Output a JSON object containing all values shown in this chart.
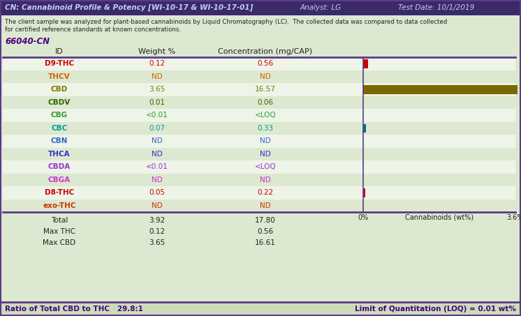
{
  "title_left": "CN: Cannabinoid Profile & Potency [WI-10-17 & WI-10-17-01]",
  "title_analyst": "Analyst: LG",
  "title_date": "Test Date: 10/1/2019",
  "description_line1": "The client sample was analyzed for plant-based cannabinoids by Liquid Chromatography (LC).  The collected data was compared to data collected",
  "description_line2": "for certified reference standards at known concentrations.",
  "sample_id": "66040-CN",
  "col_headers": [
    "ID",
    "Weight %",
    "Concentration (mg/CAP)"
  ],
  "rows": [
    {
      "id": "D9-THC",
      "color": "#cc0000",
      "weight": "0.12",
      "conc": "0.56",
      "bar_val": 0.12,
      "bar_color": "#cc0000"
    },
    {
      "id": "THCV",
      "color": "#cc6600",
      "weight": "ND",
      "conc": "ND",
      "bar_val": 0,
      "bar_color": null
    },
    {
      "id": "CBD",
      "color": "#7a7a00",
      "weight": "3.65",
      "conc": "16.57",
      "bar_val": 3.65,
      "bar_color": "#7a6800"
    },
    {
      "id": "CBDV",
      "color": "#336600",
      "weight": "0.01",
      "conc": "0.06",
      "bar_val": 0.01,
      "bar_color": null
    },
    {
      "id": "CBG",
      "color": "#339933",
      "weight": "<0.01",
      "conc": "<LOQ",
      "bar_val": 0,
      "bar_color": null
    },
    {
      "id": "CBC",
      "color": "#009999",
      "weight": "0.07",
      "conc": "0.33",
      "bar_val": 0.07,
      "bar_color": "#007070"
    },
    {
      "id": "CBN",
      "color": "#3366cc",
      "weight": "ND",
      "conc": "ND",
      "bar_val": 0,
      "bar_color": null
    },
    {
      "id": "THCA",
      "color": "#3333cc",
      "weight": "ND",
      "conc": "ND",
      "bar_val": 0,
      "bar_color": null
    },
    {
      "id": "CBDA",
      "color": "#9933cc",
      "weight": "<0.01",
      "conc": "<LOQ",
      "bar_val": 0,
      "bar_color": null
    },
    {
      "id": "CBGA",
      "color": "#cc33cc",
      "weight": "ND",
      "conc": "ND",
      "bar_val": 0,
      "bar_color": null
    },
    {
      "id": "D8-THC",
      "color": "#cc0000",
      "weight": "0.05",
      "conc": "0.22",
      "bar_val": 0.05,
      "bar_color": "#cc0000"
    },
    {
      "id": "exo-THC",
      "color": "#cc3300",
      "weight": "ND",
      "conc": "ND",
      "bar_val": 0,
      "bar_color": null
    }
  ],
  "total_row": {
    "label": "Total",
    "weight": "3.92",
    "conc": "17.80"
  },
  "max_thc_row": {
    "label": "Max THC",
    "weight": "0.12",
    "conc": "0.56"
  },
  "max_cbd_row": {
    "label": "Max CBD",
    "weight": "3.65",
    "conc": "16.61"
  },
  "ratio_text": "Ratio of Total CBD to THC   29.8:1",
  "loq_text": "Limit of Quantitation (LOQ) = 0.01 wt%",
  "bar_axis_label": "Cannabinoids (wt%)",
  "bar_axis_0": "0%",
  "bar_axis_max": "3.6%",
  "bar_max_val": 3.6,
  "bg_color": "#dce8d0",
  "title_bg": "#3a2a6a",
  "title_color": "#c8c8ff",
  "row_alt_color1": "#eef4e8",
  "row_alt_color2": "#dde8d0",
  "footer_bg": "#ccdcb8",
  "purple_color": "#4b0082",
  "dark_line_color": "#5a3a8a",
  "text_color": "#222222"
}
